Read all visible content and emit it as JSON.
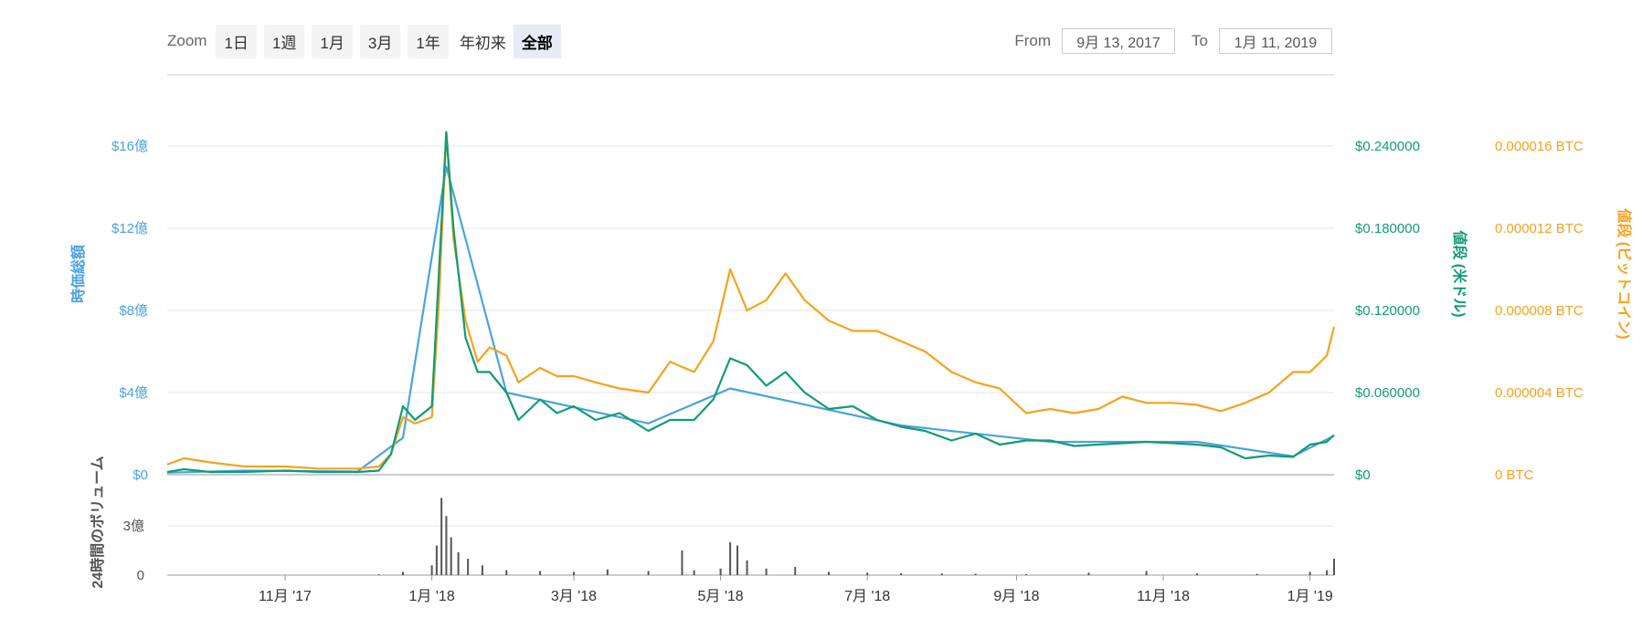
{
  "toolbar": {
    "zoom_label": "Zoom",
    "buttons": [
      "1日",
      "1週",
      "1月",
      "3月",
      "1年",
      "年初来",
      "全部"
    ],
    "active": "全部",
    "from_label": "From",
    "from_value": "9月 13, 2017",
    "to_label": "To",
    "to_value": "1月 11, 2019"
  },
  "colors": {
    "market_cap": "#4aa3df",
    "price_usd": "#109c76",
    "price_btc": "#f7a21b",
    "volume": "#555555",
    "grid": "#e6e6e6"
  },
  "chart_data": {
    "type": "line",
    "x_range": [
      "2017-09-13",
      "2019-01-11"
    ],
    "x_ticks": [
      "11月 '17",
      "1月 '18",
      "3月 '18",
      "5月 '18",
      "7月 '18",
      "9月 '18",
      "11月 '18",
      "1月 '19"
    ],
    "axes": {
      "left": {
        "label": "時価総額",
        "ticks": [
          "$0",
          "$4億",
          "$8億",
          "$12億",
          "$16億"
        ],
        "range": [
          0,
          1600000000
        ]
      },
      "right1": {
        "label": "値段 (米ドル)",
        "ticks": [
          "$0",
          "$0.060000",
          "$0.120000",
          "$0.180000",
          "$0.240000"
        ],
        "range": [
          0,
          0.24
        ]
      },
      "right2": {
        "label": "値段 (ビットコイン)",
        "ticks": [
          "0 BTC",
          "0.000004 BTC",
          "0.000008 BTC",
          "0.000012 BTC",
          "0.000016 BTC"
        ],
        "range": [
          0,
          1.6e-05
        ]
      },
      "volume": {
        "label": "24時間のボリューム",
        "ticks": [
          "0",
          "3億"
        ],
        "range": [
          0,
          500000000
        ]
      }
    },
    "grid": true,
    "series": [
      {
        "name": "値段 (米ドル)",
        "x": [
          "2017-09-13",
          "2017-09-20",
          "2017-10-01",
          "2017-10-15",
          "2017-11-01",
          "2017-11-15",
          "2017-12-01",
          "2017-12-10",
          "2017-12-15",
          "2017-12-20",
          "2017-12-25",
          "2018-01-01",
          "2018-01-04",
          "2018-01-07",
          "2018-01-10",
          "2018-01-15",
          "2018-01-20",
          "2018-01-25",
          "2018-02-01",
          "2018-02-06",
          "2018-02-15",
          "2018-02-22",
          "2018-03-01",
          "2018-03-10",
          "2018-03-20",
          "2018-04-01",
          "2018-04-10",
          "2018-04-20",
          "2018-04-28",
          "2018-05-05",
          "2018-05-12",
          "2018-05-20",
          "2018-05-28",
          "2018-06-05",
          "2018-06-15",
          "2018-06-25",
          "2018-07-05",
          "2018-07-15",
          "2018-07-25",
          "2018-08-05",
          "2018-08-15",
          "2018-08-25",
          "2018-09-05",
          "2018-09-15",
          "2018-09-25",
          "2018-10-05",
          "2018-10-15",
          "2018-10-25",
          "2018-11-05",
          "2018-11-15",
          "2018-11-25",
          "2018-12-05",
          "2018-12-15",
          "2018-12-25",
          "2019-01-01",
          "2019-01-08",
          "2019-01-11"
        ],
        "values": [
          0.002,
          0.004,
          0.002,
          0.002,
          0.003,
          0.002,
          0.002,
          0.003,
          0.015,
          0.05,
          0.04,
          0.05,
          0.15,
          0.25,
          0.18,
          0.1,
          0.075,
          0.075,
          0.06,
          0.04,
          0.055,
          0.045,
          0.05,
          0.04,
          0.045,
          0.032,
          0.04,
          0.04,
          0.055,
          0.085,
          0.08,
          0.065,
          0.075,
          0.06,
          0.048,
          0.05,
          0.04,
          0.035,
          0.032,
          0.025,
          0.03,
          0.022,
          0.025,
          0.025,
          0.021,
          0.022,
          0.023,
          0.024,
          0.023,
          0.022,
          0.02,
          0.012,
          0.014,
          0.013,
          0.022,
          0.024,
          0.029
        ]
      },
      {
        "name": "値段 (ビットコイン)",
        "x": [
          "2017-09-13",
          "2017-09-20",
          "2017-10-01",
          "2017-10-15",
          "2017-11-01",
          "2017-11-15",
          "2017-12-01",
          "2017-12-10",
          "2017-12-15",
          "2017-12-20",
          "2017-12-25",
          "2018-01-01",
          "2018-01-04",
          "2018-01-07",
          "2018-01-10",
          "2018-01-15",
          "2018-01-20",
          "2018-01-25",
          "2018-02-01",
          "2018-02-06",
          "2018-02-15",
          "2018-02-22",
          "2018-03-01",
          "2018-03-10",
          "2018-03-20",
          "2018-04-01",
          "2018-04-10",
          "2018-04-20",
          "2018-04-28",
          "2018-05-05",
          "2018-05-12",
          "2018-05-20",
          "2018-05-28",
          "2018-06-05",
          "2018-06-15",
          "2018-06-25",
          "2018-07-05",
          "2018-07-15",
          "2018-07-25",
          "2018-08-05",
          "2018-08-15",
          "2018-08-25",
          "2018-09-05",
          "2018-09-15",
          "2018-09-25",
          "2018-10-05",
          "2018-10-15",
          "2018-10-25",
          "2018-11-05",
          "2018-11-15",
          "2018-11-25",
          "2018-12-05",
          "2018-12-15",
          "2018-12-25",
          "2019-01-01",
          "2019-01-08",
          "2019-01-11"
        ],
        "values": [
          5e-07,
          8e-07,
          6e-07,
          4e-07,
          4e-07,
          3e-07,
          3e-07,
          4e-07,
          1e-06,
          2.8e-06,
          2.5e-06,
          2.8e-06,
          8.5e-06,
          1.67e-05,
          1.15e-05,
          7.5e-06,
          5.5e-06,
          6.2e-06,
          5.8e-06,
          4.5e-06,
          5.2e-06,
          4.8e-06,
          4.8e-06,
          4.5e-06,
          4.2e-06,
          4e-06,
          5.5e-06,
          5e-06,
          6.5e-06,
          1e-05,
          8e-06,
          8.5e-06,
          9.8e-06,
          8.5e-06,
          7.5e-06,
          7e-06,
          7e-06,
          6.5e-06,
          6e-06,
          5e-06,
          4.5e-06,
          4.2e-06,
          3e-06,
          3.2e-06,
          3e-06,
          3.2e-06,
          3.8e-06,
          3.5e-06,
          3.5e-06,
          3.4e-06,
          3.1e-06,
          3.5e-06,
          4e-06,
          5e-06,
          5e-06,
          5.8e-06,
          7.2e-06
        ]
      },
      {
        "name": "時価総額",
        "x": [
          "2017-09-13",
          "2017-10-15",
          "2017-12-01",
          "2017-12-20",
          "2018-01-07",
          "2018-02-01",
          "2018-04-01",
          "2018-05-05",
          "2018-07-15",
          "2018-09-15",
          "2018-11-15",
          "2018-12-25",
          "2019-01-11"
        ],
        "values": [
          10000000,
          20000000,
          15000000,
          180000000,
          1500000000,
          400000000,
          250000000,
          420000000,
          240000000,
          160000000,
          160000000,
          90000000,
          190000000
        ]
      }
    ],
    "volume": {
      "x": [
        "2017-12-10",
        "2017-12-20",
        "2018-01-01",
        "2018-01-03",
        "2018-01-05",
        "2018-01-07",
        "2018-01-09",
        "2018-01-12",
        "2018-01-16",
        "2018-01-22",
        "2018-02-01",
        "2018-02-15",
        "2018-03-01",
        "2018-03-15",
        "2018-04-01",
        "2018-04-15",
        "2018-04-20",
        "2018-05-01",
        "2018-05-05",
        "2018-05-08",
        "2018-05-12",
        "2018-05-20",
        "2018-06-01",
        "2018-06-15",
        "2018-07-01",
        "2018-07-15",
        "2018-08-01",
        "2018-08-15",
        "2018-09-05",
        "2018-10-01",
        "2018-10-25",
        "2018-11-15",
        "2018-12-10",
        "2019-01-01",
        "2019-01-08",
        "2019-01-11"
      ],
      "values": [
        5000000,
        20000000,
        60000000,
        180000000,
        470000000,
        360000000,
        230000000,
        140000000,
        100000000,
        60000000,
        30000000,
        25000000,
        20000000,
        35000000,
        25000000,
        150000000,
        30000000,
        40000000,
        200000000,
        180000000,
        90000000,
        40000000,
        50000000,
        20000000,
        15000000,
        12000000,
        10000000,
        8000000,
        6000000,
        15000000,
        25000000,
        10000000,
        8000000,
        20000000,
        30000000,
        100000000
      ]
    }
  }
}
